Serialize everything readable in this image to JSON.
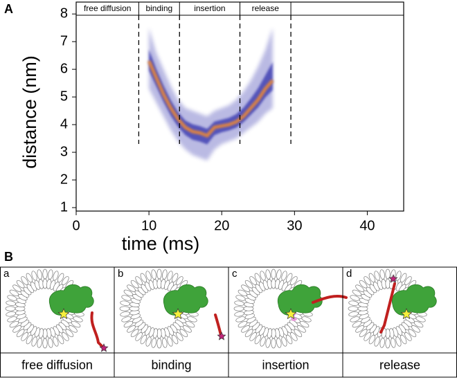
{
  "panel_labels": [
    "A",
    "B"
  ],
  "chart_data": {
    "type": "band",
    "xlabel": "time (ms)",
    "ylabel": "distance (nm)",
    "xlim": [
      0,
      45
    ],
    "ylim": [
      0.875,
      8.43
    ],
    "xticks": [
      0,
      10,
      20,
      30,
      40
    ],
    "yticks": [
      1,
      2,
      3,
      4,
      5,
      6,
      7,
      8
    ],
    "x": [
      10,
      11,
      12,
      13,
      14,
      15,
      16,
      17,
      18,
      19,
      20,
      21,
      22,
      23,
      24,
      25,
      26,
      27
    ],
    "center": [
      6.3,
      5.7,
      5.1,
      4.6,
      4.2,
      3.9,
      3.75,
      3.7,
      3.6,
      3.9,
      3.95,
      4.0,
      4.1,
      4.3,
      4.6,
      4.9,
      5.3,
      5.6
    ],
    "upper": [
      7.5,
      6.6,
      6.0,
      5.4,
      4.9,
      4.6,
      4.5,
      4.4,
      4.3,
      4.5,
      4.6,
      4.7,
      4.9,
      5.2,
      5.6,
      6.1,
      6.7,
      7.5
    ],
    "lower": [
      5.3,
      4.8,
      4.3,
      3.8,
      3.4,
      3.1,
      2.9,
      2.8,
      2.7,
      3.1,
      3.3,
      3.4,
      3.5,
      3.7,
      3.9,
      4.1,
      4.4,
      4.6
    ],
    "band_color": "#3b3bb0",
    "center_color": "#f08a30",
    "phase_labels": [
      "free diffusion",
      "binding",
      "insertion",
      "release"
    ],
    "phase_bounds": [
      8.6,
      14.2,
      22.5,
      29.5
    ]
  },
  "diagram": {
    "panels": [
      {
        "letter": "a",
        "caption": "free diffusion"
      },
      {
        "letter": "b",
        "caption": "binding"
      },
      {
        "letter": "c",
        "caption": "insertion"
      },
      {
        "letter": "d",
        "caption": "release"
      }
    ]
  }
}
